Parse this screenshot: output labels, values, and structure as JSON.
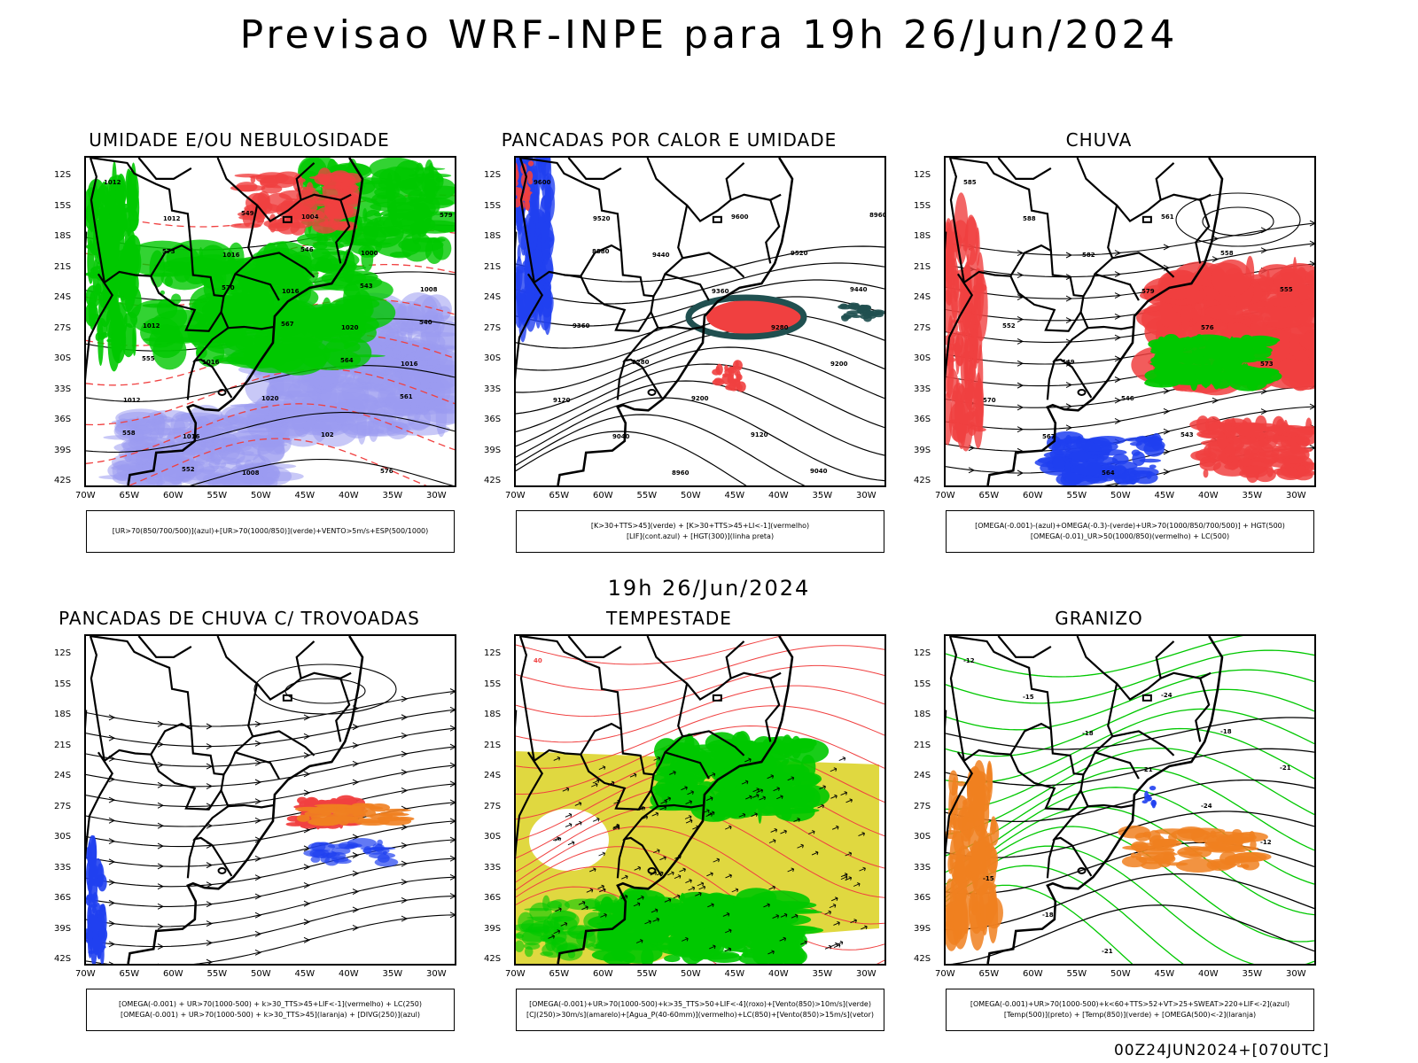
{
  "main_title": "Previsao WRF-INPE  para 19h 26/Jun/2024",
  "mid_date": "19h 26/Jun/2024",
  "footer": "00Z24JUN2024+[070UTC]",
  "lat_labels": [
    "12S",
    "15S",
    "18S",
    "21S",
    "24S",
    "27S",
    "30S",
    "33S",
    "36S",
    "39S",
    "42S"
  ],
  "lon_labels": [
    "70W",
    "65W",
    "60W",
    "55W",
    "50W",
    "45W",
    "40W",
    "35W",
    "30W"
  ],
  "panels": [
    {
      "title": "UMIDADE E/OU NEBULOSIDADE",
      "legend": [
        "[UR>70(850/700/500)](azul)+[UR>70(1000/850)](verde)+VENTO>5m/s+ESP(500/1000)"
      ],
      "contour_labels": [
        "1012",
        "1012",
        "1016",
        "1016",
        "1020",
        "1016",
        "1012",
        "1016",
        "1008",
        "1004",
        "1000",
        "1008",
        "1012",
        "1016",
        "1020",
        "102",
        "576",
        "579",
        "573",
        "570",
        "567",
        "564",
        "561",
        "558",
        "552",
        "549",
        "546",
        "543",
        "540",
        "555"
      ]
    },
    {
      "title": "PANCADAS POR CALOR E UMIDADE",
      "legend": [
        "[K>30+TTS>45](verde) + [K>30+TTS>45+LI<-1](vermelho)",
        "[LIF](cont.azul) + [HGT(300)](linha preta)"
      ],
      "contour_labels": [
        "9600",
        "9520",
        "9440",
        "9360",
        "9280",
        "9200",
        "9120",
        "9040",
        "8960",
        "9600",
        "9520",
        "9440",
        "9360",
        "9280",
        "9200",
        "9120",
        "9040",
        "8960",
        "8880"
      ]
    },
    {
      "title": "CHUVA",
      "legend": [
        "[OMEGA(-0.001)-(azul)+OMEGA(-0.3)-(verde)+UR>70(1000/850/700/500)] + HGT(500)",
        "[OMEGA(-0.01)_UR>50(1000/850)(vermelho) + LC(500)"
      ],
      "contour_labels": [
        "585",
        "588",
        "582",
        "579",
        "576",
        "573",
        "570",
        "567",
        "564",
        "561",
        "558",
        "555",
        "552",
        "549",
        "546",
        "543"
      ]
    },
    {
      "title": "PANCADAS DE CHUVA C/ TROVOADAS",
      "legend": [
        "[OMEGA(-0.001) + UR>70(1000-500) + k>30_TTS>45+LIF<-1](vermelho) + LC(250)",
        "[OMEGA(-0.001) + UR>70(1000-500) + k>30_TTS>45](laranja) + [DIVG(250)](azul)"
      ],
      "contour_labels": []
    },
    {
      "title": "TEMPESTADE",
      "legend": [
        "[OMEGA(-0.001)+UR>70(1000-500)+k>35_TTS>50+LIF<-4](roxo)+[Vento(850)>10m/s](verde)",
        "[CJ(250)>30m/s](amarelo)+[Agua_P(40-60mm)](vermelho)+LC(850)+[Vento(850)>15m/s](vetor)"
      ],
      "contour_labels": [
        "40"
      ]
    },
    {
      "title": "GRANIZO",
      "legend": [
        "[OMEGA(-0.001)+UR>70(1000-500)+k<60+TTS>52+VT>25+SWEAT>220+LIF<-2](azul)",
        "[Temp(500)](preto) + [Temp(850)](verde) + [OMEGA(500)<-2](laranja)"
      ],
      "contour_labels": [
        "-12",
        "-15",
        "-18",
        "-21",
        "-24",
        "-12",
        "-15",
        "-18",
        "-21",
        "-24",
        "-18",
        "-21"
      ]
    }
  ],
  "colors": {
    "coast": "#000000",
    "blue_shade": "#9a9af0",
    "green": "#00c800",
    "red": "#f04040",
    "orange": "#f08020",
    "yellow": "#e0d840",
    "dark_teal": "#205050",
    "blue_line": "#2040f0"
  }
}
